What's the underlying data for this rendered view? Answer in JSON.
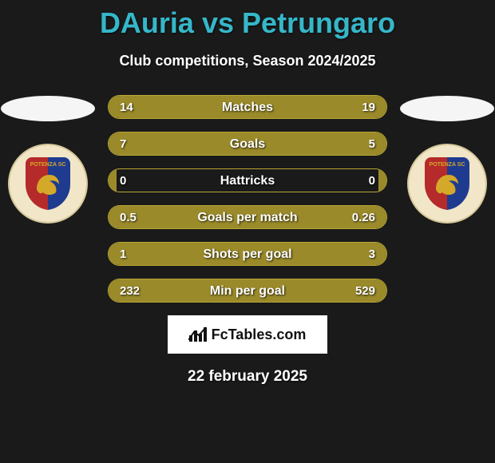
{
  "title_color": "#35b7c9",
  "player_a": "DAuria",
  "player_b": "Petrungaro",
  "subtitle": "Club competitions, Season 2024/2025",
  "bar_color_a": "#9a8a2a",
  "bar_color_b": "#9a8a2a",
  "row_border_color": "#b8a634",
  "row_bg_color": "rgba(0,0,0,0)",
  "text_color": "#ffffff",
  "stats": [
    {
      "label": "Matches",
      "a": "14",
      "b": "19",
      "pct_a": 42,
      "pct_b": 58
    },
    {
      "label": "Goals",
      "a": "7",
      "b": "5",
      "pct_a": 58,
      "pct_b": 42
    },
    {
      "label": "Hattricks",
      "a": "0",
      "b": "0",
      "pct_a": 3,
      "pct_b": 3
    },
    {
      "label": "Goals per match",
      "a": "0.5",
      "b": "0.26",
      "pct_a": 66,
      "pct_b": 34
    },
    {
      "label": "Shots per goal",
      "a": "1",
      "b": "3",
      "pct_a": 25,
      "pct_b": 75
    },
    {
      "label": "Min per goal",
      "a": "232",
      "b": "529",
      "pct_a": 31,
      "pct_b": 69
    }
  ],
  "crest": {
    "top_text": "POTENZA SC",
    "bg": "#f2e6c8",
    "shield_left": "#b52a2a",
    "shield_right": "#1f3b8f",
    "lion": "#d4a829"
  },
  "watermark": "FcTables.com",
  "date": "22 february 2025"
}
